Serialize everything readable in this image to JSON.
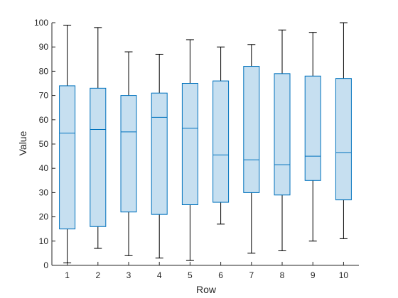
{
  "chart_data": {
    "type": "box",
    "title": "",
    "xlabel": "Row",
    "ylabel": "Value",
    "xlim": [
      0.5,
      10.5
    ],
    "ylim": [
      0,
      100
    ],
    "grid": false,
    "categories": [
      "1",
      "2",
      "3",
      "4",
      "5",
      "6",
      "7",
      "8",
      "9",
      "10"
    ],
    "y_ticks": [
      0,
      10,
      20,
      30,
      40,
      50,
      60,
      70,
      80,
      90,
      100
    ],
    "y_tick_labels": [
      "0",
      "10",
      "20",
      "30",
      "40",
      "50",
      "60",
      "70",
      "80",
      "90",
      "100"
    ],
    "boxes": [
      {
        "category": "1",
        "min": 1,
        "q1": 15,
        "median": 54.5,
        "q3": 74,
        "max": 99
      },
      {
        "category": "2",
        "min": 7,
        "q1": 16,
        "median": 56,
        "q3": 73,
        "max": 98
      },
      {
        "category": "3",
        "min": 4,
        "q1": 22,
        "median": 55,
        "q3": 70,
        "max": 88
      },
      {
        "category": "4",
        "min": 3,
        "q1": 21,
        "median": 61,
        "q3": 71,
        "max": 87
      },
      {
        "category": "5",
        "min": 2,
        "q1": 25,
        "median": 56.5,
        "q3": 75,
        "max": 93
      },
      {
        "category": "6",
        "min": 17,
        "q1": 26,
        "median": 45.5,
        "q3": 76,
        "max": 90
      },
      {
        "category": "7",
        "min": 5,
        "q1": 30,
        "median": 43.5,
        "q3": 82,
        "max": 91
      },
      {
        "category": "8",
        "min": 6,
        "q1": 29,
        "median": 41.5,
        "q3": 79,
        "max": 97
      },
      {
        "category": "9",
        "min": 10,
        "q1": 35,
        "median": 45,
        "q3": 78,
        "max": 96
      },
      {
        "category": "10",
        "min": 11,
        "q1": 27,
        "median": 46.5,
        "q3": 77,
        "max": 100
      }
    ],
    "colors": {
      "box_fill": "#c6dff0",
      "box_stroke": "#0072bd",
      "whisker": "#000000",
      "axis": "#262626"
    }
  }
}
